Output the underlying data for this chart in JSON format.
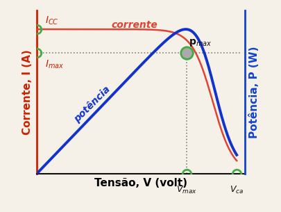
{
  "title": "",
  "xlabel": "Tensão, V (volt)",
  "ylabel_left": "Corrente, I (A)",
  "ylabel_right": "Potência, P (W)",
  "x_max": 1.0,
  "Icc": 0.93,
  "Imax": 0.78,
  "Vmax": 0.72,
  "Vca": 0.96,
  "left_axis_color": "#cc2200",
  "right_axis_color": "#1144cc",
  "corrente_color": "#dd4433",
  "potencia_color": "#1133cc",
  "circle_color": "#44aa44",
  "bg_color": "#f5f0e8",
  "xlabel_fontsize": 11,
  "ylabel_fontsize": 11
}
